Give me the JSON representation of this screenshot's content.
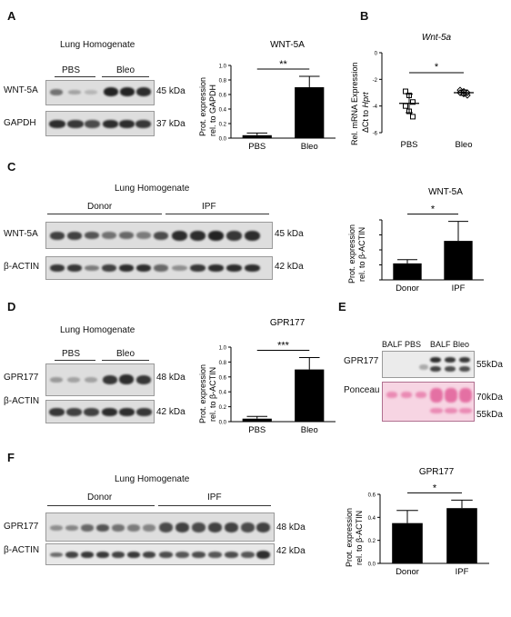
{
  "panels": {
    "A": {
      "letter": "A",
      "header": "Lung Homogenate",
      "groups": [
        "PBS",
        "Bleo"
      ],
      "rows": [
        {
          "label": "WNT-5A",
          "size": "45 kDa"
        },
        {
          "label": "GAPDH",
          "size": "37 kDa"
        }
      ]
    },
    "B": {
      "letter": "B"
    },
    "C": {
      "letter": "C",
      "header": "Lung Homogenate",
      "groups": [
        "Donor",
        "IPF"
      ],
      "rows": [
        {
          "label": "WNT-5A",
          "size": "45 kDa"
        },
        {
          "label": "β-ACTIN",
          "size": "42 kDa"
        }
      ]
    },
    "D": {
      "letter": "D",
      "header": "Lung Homogenate",
      "groups": [
        "PBS",
        "Bleo"
      ],
      "rows": [
        {
          "label": "GPR177",
          "size": "48 kDa"
        },
        {
          "label": "β-ACTIN",
          "size": "42 kDa"
        }
      ]
    },
    "E": {
      "letter": "E",
      "groups": [
        "BALF PBS",
        "BALF Bleo"
      ],
      "rows": [
        {
          "label": "GPR177",
          "size": "55kDa"
        },
        {
          "label": "Ponceau",
          "size": "70kDa",
          "size2": "55kDa"
        }
      ]
    },
    "F": {
      "letter": "F",
      "header": "Lung Homogenate",
      "groups": [
        "Donor",
        "IPF"
      ],
      "rows": [
        {
          "label": "GPR177",
          "size": "48 kDa"
        },
        {
          "label": "β-ACTIN",
          "size": "42 kDa"
        }
      ]
    }
  },
  "chart_data": [
    {
      "id": "A",
      "type": "bar",
      "title": "WNT-5A",
      "ylabel": "Prot. expression rel. to GAPDH",
      "categories": [
        "PBS",
        "Bleo"
      ],
      "values": [
        0.04,
        0.7
      ],
      "errors": [
        0.03,
        0.15
      ],
      "ylim": [
        0.0,
        1.0
      ],
      "yticks": [
        "0.0",
        "0.2",
        "0.4",
        "0.6",
        "0.8",
        "1.0"
      ],
      "significance": "**"
    },
    {
      "id": "B",
      "type": "scatter",
      "title": "Wnt-5a",
      "ylabel": "Rel. mRNA Expression ΔCt to Hprt",
      "categories": [
        "PBS",
        "Bleo"
      ],
      "means": [
        -3.8,
        -3.0
      ],
      "sd": [
        0.7,
        0.2
      ],
      "points": [
        [
          -2.9,
          -3.2,
          -3.7,
          -4.0,
          -4.4,
          -4.8
        ],
        [
          -2.8,
          -2.9,
          -3.0,
          -3.0,
          -3.1,
          -3.2
        ]
      ],
      "ylim": [
        -6,
        0
      ],
      "yticks": [
        "0",
        "-2",
        "-4",
        "-6"
      ],
      "significance": "*"
    },
    {
      "id": "C",
      "type": "bar",
      "title": "WNT-5A",
      "ylabel": "Prot. expression rel. to β-ACTIN",
      "categories": [
        "Donor",
        "IPF"
      ],
      "values": [
        2.2,
        5.2
      ],
      "errors": [
        0.5,
        2.6
      ],
      "ylim": [
        0,
        8
      ],
      "yticks": [],
      "significance": "*"
    },
    {
      "id": "D",
      "type": "bar",
      "title": "GPR177",
      "ylabel": "Prot. expression rel. to β-ACTIN",
      "categories": [
        "PBS",
        "Bleo"
      ],
      "values": [
        0.04,
        0.7
      ],
      "errors": [
        0.03,
        0.16
      ],
      "ylim": [
        0.0,
        1.0
      ],
      "yticks": [
        "0.0",
        "0.2",
        "0.4",
        "0.6",
        "0.8",
        "1.0"
      ],
      "significance": "***"
    },
    {
      "id": "F",
      "type": "bar",
      "title": "GPR177",
      "ylabel": "Prot. expression rel. to β-ACTIN",
      "categories": [
        "Donor",
        "IPF"
      ],
      "values": [
        0.35,
        0.48
      ],
      "errors": [
        0.11,
        0.07
      ],
      "ylim": [
        0.0,
        0.6
      ],
      "yticks": [
        "0.0",
        "0.2",
        "0.4",
        "0.6"
      ],
      "significance": "*"
    }
  ]
}
